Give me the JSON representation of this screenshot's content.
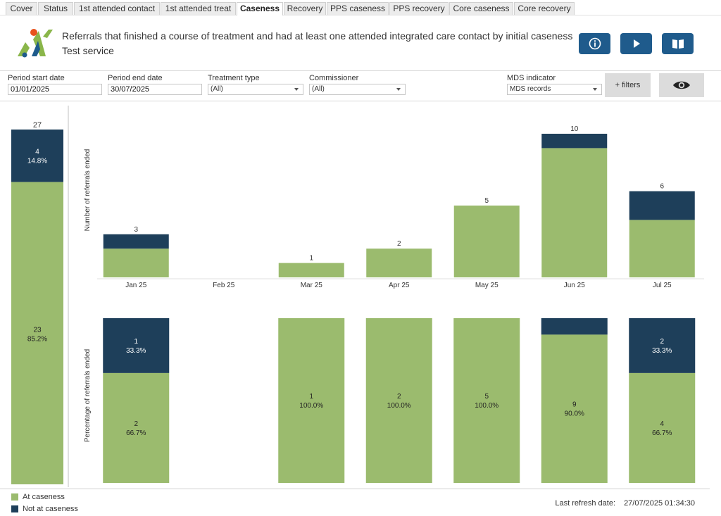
{
  "tabs": [
    "Cover",
    "Status",
    "1st attended contact",
    "1st attended treat",
    "Caseness",
    "Recovery",
    "PPS caseness",
    "PPS recovery",
    "Core caseness",
    "Core recovery"
  ],
  "active_tab": "Caseness",
  "header": {
    "title": "Referrals that finished a course of treatment and had at least one attended integrated care contact by initial caseness",
    "subtitle": "Test service"
  },
  "header_buttons": [
    {
      "name": "info-button",
      "icon": "info-icon"
    },
    {
      "name": "play-button",
      "icon": "play-icon"
    },
    {
      "name": "guide-button",
      "icon": "book-icon"
    }
  ],
  "filters": {
    "period_start": {
      "label": "Period start date",
      "value": "01/01/2025"
    },
    "period_end": {
      "label": "Period end date",
      "value": "30/07/2025"
    },
    "treatment_type": {
      "label": "Treatment type",
      "value": "(All)"
    },
    "commissioner": {
      "label": "Commissioner",
      "value": "(All)"
    },
    "mds_indicator": {
      "label": "MDS indicator",
      "value": "MDS records"
    },
    "more_filters_label": "+ filters",
    "eye_icon": "eye-icon"
  },
  "colors": {
    "at_caseness": "#9bbb6e",
    "not_at_caseness": "#1e3f5a",
    "accent": "#1f5b8c"
  },
  "chart_data": {
    "type": "bar",
    "stacked": true,
    "categories": [
      "Jan 25",
      "Feb 25",
      "Mar 25",
      "Apr 25",
      "May 25",
      "Jun 25",
      "Jul 25"
    ],
    "ylabel_top": "Number of referrals ended",
    "ylabel_bottom": "Percentage of referrals ended",
    "series": [
      {
        "name": "At caseness",
        "values": [
          2,
          0,
          1,
          2,
          5,
          9,
          4
        ]
      },
      {
        "name": "Not at caseness",
        "values": [
          1,
          0,
          0,
          0,
          0,
          1,
          2
        ]
      }
    ],
    "totals": [
      3,
      null,
      1,
      2,
      5,
      10,
      6
    ],
    "percent": {
      "at_caseness": [
        66.7,
        null,
        100.0,
        100.0,
        100.0,
        90.0,
        66.7
      ],
      "not_at_caseness": [
        33.3,
        null,
        0,
        0,
        0,
        10.0,
        33.3
      ]
    },
    "percent_labels": [
      {
        "at": [
          "2",
          "66.7%"
        ],
        "not": [
          "1",
          "33.3%"
        ]
      },
      null,
      {
        "at": [
          "1",
          "100.0%"
        ],
        "not": null
      },
      {
        "at": [
          "2",
          "100.0%"
        ],
        "not": null
      },
      {
        "at": [
          "5",
          "100.0%"
        ],
        "not": null
      },
      {
        "at": [
          "9",
          "90.0%"
        ],
        "not": null
      },
      {
        "at": [
          "4",
          "66.7%"
        ],
        "not": [
          "2",
          "33.3%"
        ]
      }
    ],
    "total_bar": {
      "total": 27,
      "at_caseness": {
        "count": "23",
        "pct": "85.2%",
        "value": 23
      },
      "not_at_caseness": {
        "count": "4",
        "pct": "14.8%",
        "value": 4
      }
    }
  },
  "legend": [
    {
      "label": "At caseness",
      "color": "#9bbb6e"
    },
    {
      "label": "Not at caseness",
      "color": "#1e3f5a"
    }
  ],
  "footer": {
    "refresh_label": "Last refresh date:",
    "refresh_value": "27/07/2025 01:34:30"
  }
}
